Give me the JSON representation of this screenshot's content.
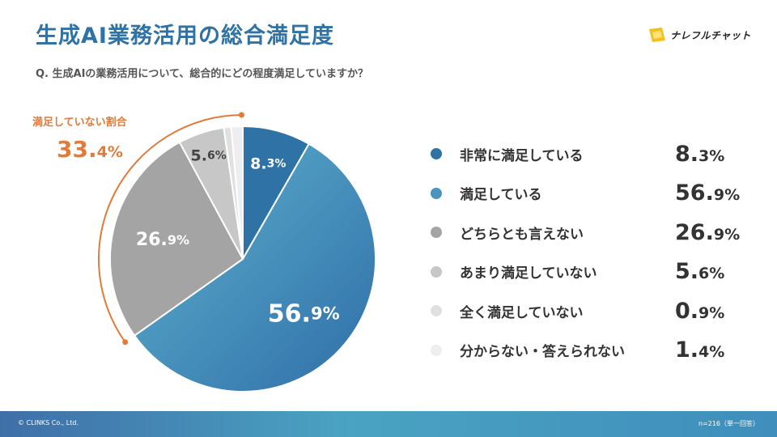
{
  "page": {
    "title": "生成AI業務活用の総合満足度",
    "question": "Q. 生成AIの業務活用について、総合的にどの程度満足していますか？",
    "brand": "ナレフルチャット",
    "copyright": "© CLINKS Co., Ltd.",
    "sample_note": "n=216（単一回答）"
  },
  "callout": {
    "label": "満足していない割合",
    "value_int": "33.",
    "value_dec": "4%",
    "color": "#e07b39"
  },
  "chart_data": {
    "type": "pie",
    "start_angle_deg": 0,
    "direction": "clockwise",
    "categories": [
      "非常に満足している",
      "満足している",
      "どちらとも言えない",
      "あまり満足していない",
      "全く満足していない",
      "分からない・答えられない"
    ],
    "values": [
      8.3,
      56.9,
      26.9,
      5.6,
      0.9,
      1.4
    ],
    "unit": "%",
    "colors": [
      "#2f73a6",
      "#4a95bf",
      "#a4a4a4",
      "#c7c7c7",
      "#e0e0e0",
      "#eeeeee"
    ],
    "slice_labels": [
      {
        "int": "8.",
        "dec": "3%"
      },
      {
        "int": "56.",
        "dec": "9%"
      },
      {
        "int": "26.",
        "dec": "9%"
      },
      {
        "int": "5.",
        "dec": "6%"
      },
      {
        "int": "",
        "dec": ""
      },
      {
        "int": "",
        "dec": ""
      }
    ],
    "legend": [
      {
        "label": "非常に満足している",
        "int": "8.",
        "dec": "3%"
      },
      {
        "label": "満足している",
        "int": "56.",
        "dec": "9%"
      },
      {
        "label": "どちらとも言えない",
        "int": "26.",
        "dec": "9%"
      },
      {
        "label": "あまり満足していない",
        "int": "5.",
        "dec": "6%"
      },
      {
        "label": "全く満足していない",
        "int": "0.",
        "dec": "9%"
      },
      {
        "label": "分からない・答えられない",
        "int": "1.",
        "dec": "4%"
      }
    ]
  }
}
